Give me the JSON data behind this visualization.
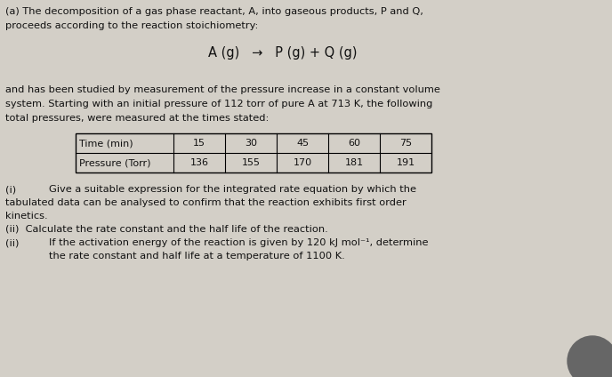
{
  "bg_color": "#d3cfc7",
  "title_line1": "(a) The decomposition of a gas phase reactant, A, into gaseous products, P and Q,",
  "title_line2": "proceeds according to the reaction stoichiometry:",
  "reaction": "A (g)   →   P (g) + Q (g)",
  "para1_line1": "and has been studied by measurement of the pressure increase in a constant volume",
  "para1_line2": "system. Starting with an initial pressure of 112 torr of pure A at 713 K, the following",
  "para1_line3": "total pressures, were measured at the times stated:",
  "table_headers": [
    "Time (min)",
    "15",
    "30",
    "45",
    "60",
    "75"
  ],
  "table_row2": [
    "Pressure (Torr)",
    "136",
    "155",
    "170",
    "181",
    "191"
  ],
  "q1_label": "(i)",
  "q1_text_line1": "Give a suitable expression for the integrated rate equation by which the",
  "q1_text_line2": "tabulated data can be analysed to confirm that the reaction exhibits first order",
  "q1_text_line3": "kinetics.",
  "q2_line": "(ii)  Calculate the rate constant and the half life of the reaction.",
  "q3_label": "(ii)",
  "q3_text_line1": "If the activation energy of the reaction is given by 120 kJ mol⁻¹, determine",
  "q3_text_line2": "the rate constant and half life at a temperature of 1100 K.",
  "font_size_body": 8.2,
  "font_size_reaction": 10.5,
  "font_size_table": 8.0,
  "text_color": "#111111",
  "fig_width": 6.88,
  "fig_height": 4.24,
  "dpi": 100
}
